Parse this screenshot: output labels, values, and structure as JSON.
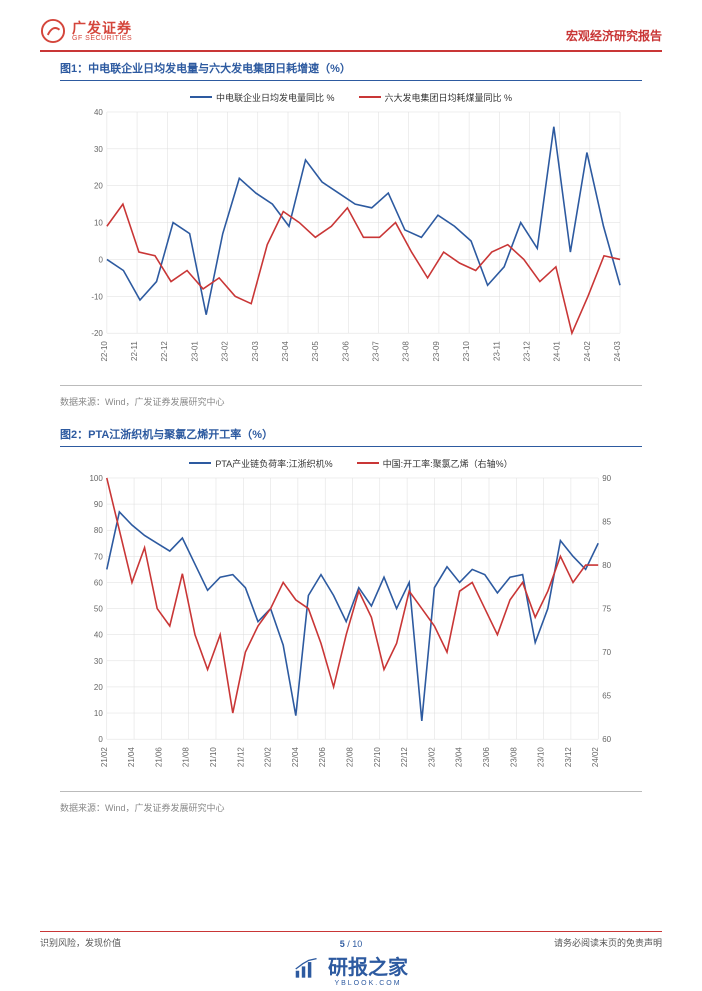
{
  "header": {
    "logo_cn": "广发证券",
    "logo_en": "GF SECURITIES",
    "report_type": "宏观经济研究报告"
  },
  "chart1": {
    "title": "图1：中电联企业日均发电量与六大发电集团日耗增速（%）",
    "type": "line",
    "legend_a": "中电联企业日均发电量同比 %",
    "legend_b": "六大发电集团日均耗煤量同比 %",
    "color_a": "#2d5aa0",
    "color_b": "#c93636",
    "ylim": [
      -20,
      40
    ],
    "yticks": [
      -20,
      -10,
      0,
      10,
      20,
      30,
      40
    ],
    "xlabels": [
      "22-10",
      "22-11",
      "22-12",
      "23-01",
      "23-02",
      "23-03",
      "23-04",
      "23-05",
      "23-06",
      "23-07",
      "23-08",
      "23-09",
      "23-10",
      "23-11",
      "23-12",
      "24-01",
      "24-02",
      "24-03"
    ],
    "series_a": [
      0,
      -3,
      -11,
      -6,
      10,
      7,
      -15,
      7,
      22,
      18,
      15,
      9,
      27,
      21,
      18,
      15,
      14,
      18,
      8,
      6,
      12,
      9,
      5,
      -7,
      -2,
      10,
      3,
      36,
      2,
      29,
      9,
      -7
    ],
    "series_b": [
      9,
      15,
      2,
      1,
      -6,
      -3,
      -8,
      -5,
      -10,
      -12,
      4,
      13,
      10,
      6,
      9,
      14,
      6,
      6,
      10,
      2,
      -5,
      2,
      -1,
      -3,
      2,
      4,
      0,
      -6,
      -2,
      -20,
      -10,
      1,
      0
    ],
    "grid_color": "#dddddd",
    "background_color": "#ffffff",
    "axis_color": "#666666",
    "font_size_tick": 8,
    "line_width": 1.6
  },
  "chart2": {
    "title": "图2：PTA江浙织机与聚氯乙烯开工率（%）",
    "type": "line_dual_axis",
    "legend_a": "PTA产业链负荷率:江浙织机%",
    "legend_b": "中国:开工率:聚氯乙烯（右轴%）",
    "color_a": "#2d5aa0",
    "color_b": "#c93636",
    "ylim_left": [
      0,
      100
    ],
    "yticks_left": [
      0,
      10,
      20,
      30,
      40,
      50,
      60,
      70,
      80,
      90,
      100
    ],
    "ylim_right": [
      60,
      90
    ],
    "yticks_right": [
      60,
      65,
      70,
      75,
      80,
      85,
      90
    ],
    "xlabels": [
      "21/02",
      "21/04",
      "21/06",
      "21/08",
      "21/10",
      "21/12",
      "22/02",
      "22/04",
      "22/06",
      "22/08",
      "22/10",
      "22/12",
      "23/02",
      "23/04",
      "23/06",
      "23/08",
      "23/10",
      "23/12",
      "24/02"
    ],
    "series_a": [
      65,
      87,
      82,
      78,
      75,
      72,
      77,
      67,
      57,
      62,
      63,
      58,
      45,
      50,
      36,
      9,
      55,
      63,
      55,
      45,
      58,
      51,
      62,
      50,
      60,
      7,
      58,
      66,
      60,
      65,
      63,
      56,
      62,
      63,
      37,
      50,
      76,
      70,
      65,
      75
    ],
    "series_b": [
      90,
      84,
      78,
      82,
      75,
      73,
      79,
      72,
      68,
      72,
      63,
      70,
      73,
      75,
      78,
      76,
      75,
      71,
      66,
      72,
      77,
      74,
      68,
      71,
      77,
      75,
      73,
      70,
      77,
      78,
      75,
      72,
      76,
      78,
      74,
      77,
      81,
      78,
      80,
      80
    ],
    "grid_color": "#dddddd",
    "background_color": "#ffffff",
    "axis_color": "#666666",
    "font_size_tick": 8,
    "line_width": 1.6
  },
  "source_label": "数据来源：Wind，广发证券发展研究中心",
  "footer": {
    "left": "识别风险，发现价值",
    "right": "请务必阅读末页的免责声明",
    "page_current": "5",
    "page_total": "10"
  },
  "watermark": {
    "text": "研报之家",
    "sub": "YBLOOK.COM"
  }
}
